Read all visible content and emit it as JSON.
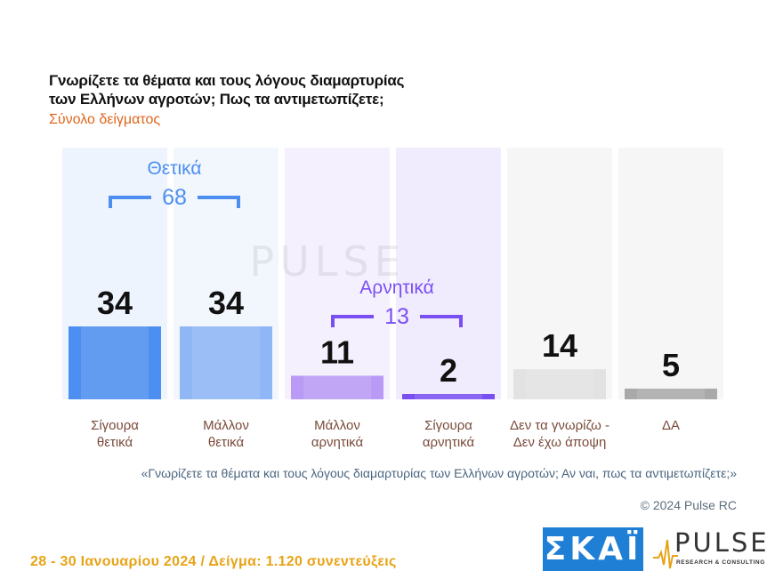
{
  "title": "Γνωρίζετε τα θέματα και τους λόγους διαμαρτυρίας\nτων Ελλήνων αγροτών; Πως τα αντιμετωπίζετε;",
  "subtitle": "Σύνολο δείγματος",
  "footnote": "«Γνωρίζετε τα θέματα και τους λόγους διαμαρτυρίας των Ελλήνων αγροτών; Αν ναι, πως τα αντιμετωπίζετε;»",
  "copyright": "© 2024 Pulse RC",
  "dates": "28 - 30  Ιανουαρίου  2024  /  Δείγμα:  1.120 συνεντεύξεις",
  "logos": {
    "skai": "ΣΚΑΪ",
    "pulse": "PULSE",
    "pulse_tag": "RESEARCH & CONSULTING"
  },
  "colors": {
    "positive": "#4d8ff0",
    "positive_light": "#8fb6f5",
    "negative": "#7a4ff2",
    "negative_light": "#b99af5",
    "neutral": "#e2e2e2",
    "na": "#a9a9a9",
    "label": "#7a4a3a",
    "title_accent": "#e0661c"
  },
  "chart_data": {
    "type": "bar",
    "categories": [
      "Σίγουρα\nθετικά",
      "Μάλλον\nθετικά",
      "Μάλλον\nαρνητικά",
      "Σίγουρα\nαρνητικά",
      "Δεν τα γνωρίζω -\nΔεν έχω άποψη",
      "ΔΑ"
    ],
    "values": [
      34,
      34,
      11,
      2,
      14,
      5
    ],
    "groups": [
      {
        "label": "Θετικά",
        "total": "68",
        "categories": [
          0,
          1
        ]
      },
      {
        "label": "Αρνητικά",
        "total": "13",
        "categories": [
          2,
          3
        ]
      }
    ],
    "ylim": [
      0,
      34
    ]
  }
}
